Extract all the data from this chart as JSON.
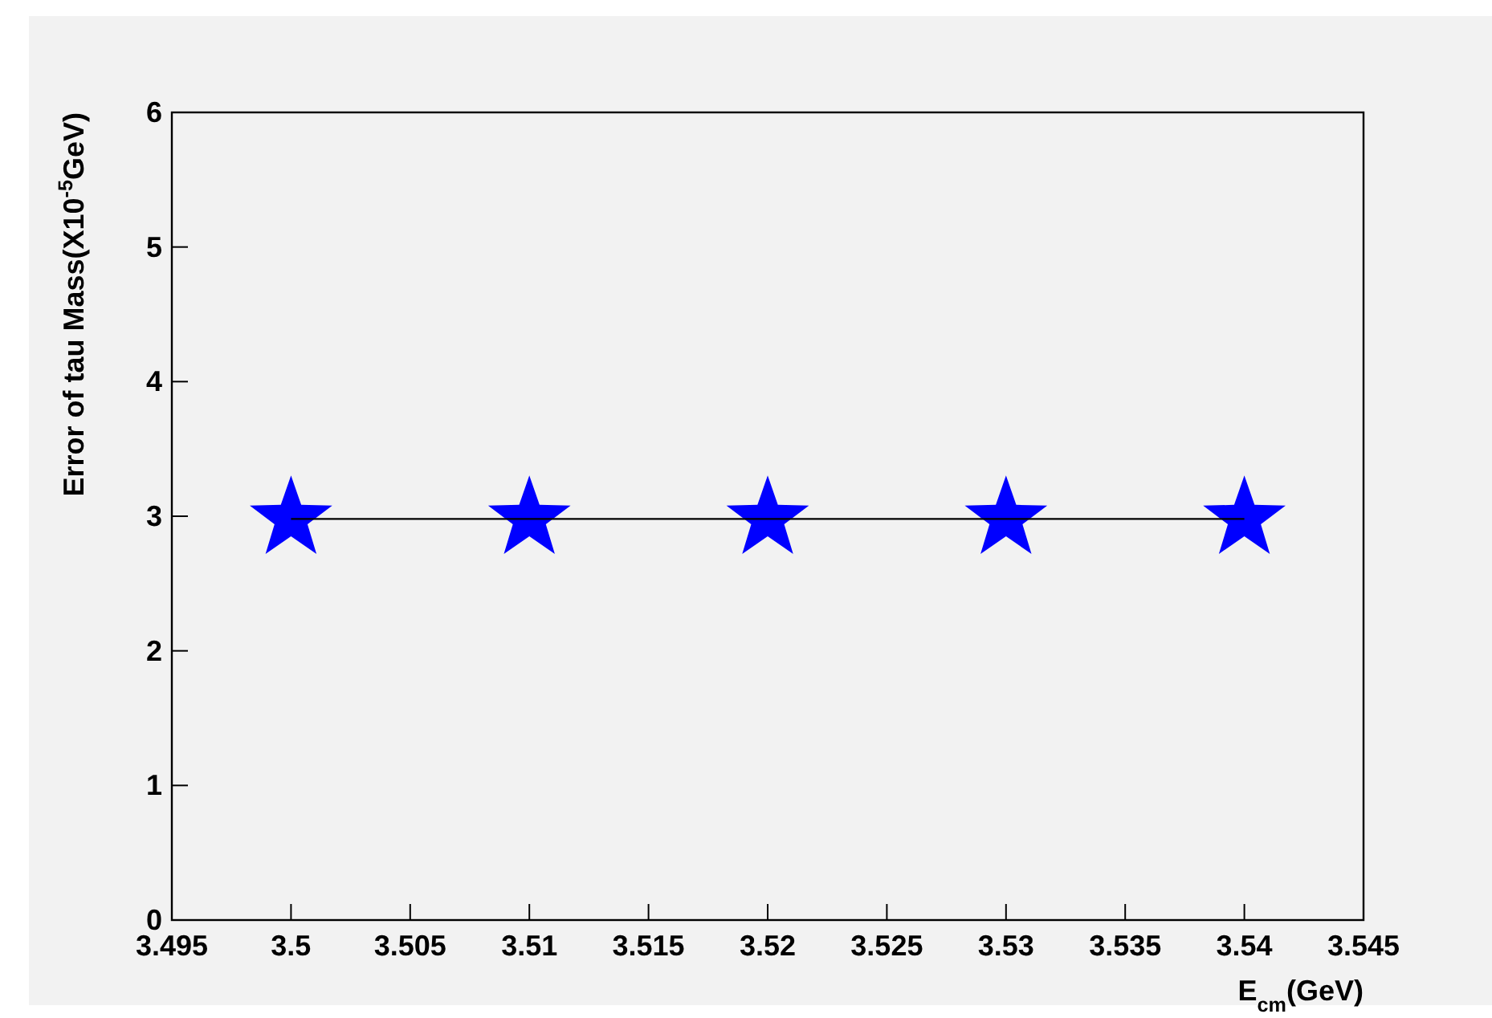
{
  "chart_data": {
    "type": "line",
    "xlabel": "E$_{cm}$(GeV)",
    "ylabel": "Error of tau Mass(X10$^{-5}$GeV)",
    "x": [
      3.5,
      3.51,
      3.52,
      3.53,
      3.54
    ],
    "series": [
      {
        "type": "scatter",
        "color": "#0000ff",
        "marker": "star",
        "values": [
          2.98,
          2.98,
          2.98,
          2.98,
          2.98
        ]
      },
      {
        "color": "#000000",
        "marker": "none",
        "values": [
          2.98,
          2.98,
          2.98,
          2.98,
          2.98
        ]
      }
    ],
    "xlim": [
      3.495,
      3.545
    ],
    "xticks": [
      3.495,
      3.5,
      3.505,
      3.51,
      3.515,
      3.52,
      3.525,
      3.53,
      3.535,
      3.54,
      3.545
    ],
    "ylim": [
      0,
      6
    ],
    "yticks": [
      0,
      1,
      2,
      3,
      4,
      5,
      6
    ],
    "grid": false
  }
}
